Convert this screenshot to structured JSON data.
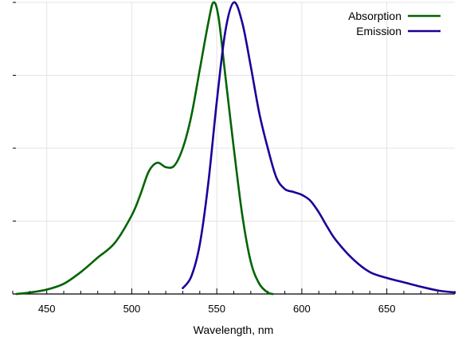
{
  "chart_data": {
    "type": "line",
    "xlabel": "Wavelength, nm",
    "ylabel": "",
    "xlim": [
      430,
      690
    ],
    "ylim": [
      0,
      1
    ],
    "x_ticks": [
      "450",
      "500",
      "550",
      "600",
      "650"
    ],
    "grid": true,
    "legend_position": "top-right",
    "series": [
      {
        "name": "Absorption",
        "color": "#006400",
        "points": [
          [
            432,
            0.0
          ],
          [
            440,
            0.005
          ],
          [
            450,
            0.015
          ],
          [
            460,
            0.035
          ],
          [
            470,
            0.075
          ],
          [
            480,
            0.125
          ],
          [
            490,
            0.175
          ],
          [
            500,
            0.27
          ],
          [
            505,
            0.34
          ],
          [
            510,
            0.42
          ],
          [
            515,
            0.45
          ],
          [
            520,
            0.435
          ],
          [
            525,
            0.44
          ],
          [
            530,
            0.5
          ],
          [
            535,
            0.61
          ],
          [
            540,
            0.77
          ],
          [
            545,
            0.93
          ],
          [
            548,
            1.0
          ],
          [
            551,
            0.95
          ],
          [
            555,
            0.75
          ],
          [
            560,
            0.5
          ],
          [
            565,
            0.27
          ],
          [
            570,
            0.11
          ],
          [
            575,
            0.035
          ],
          [
            580,
            0.005
          ],
          [
            583,
            0.0
          ]
        ]
      },
      {
        "name": "Emission",
        "color": "#1a0099",
        "points": [
          [
            530,
            0.02
          ],
          [
            535,
            0.06
          ],
          [
            540,
            0.17
          ],
          [
            545,
            0.38
          ],
          [
            550,
            0.66
          ],
          [
            555,
            0.9
          ],
          [
            560,
            1.0
          ],
          [
            565,
            0.93
          ],
          [
            570,
            0.78
          ],
          [
            575,
            0.62
          ],
          [
            580,
            0.5
          ],
          [
            585,
            0.4
          ],
          [
            590,
            0.36
          ],
          [
            595,
            0.35
          ],
          [
            600,
            0.34
          ],
          [
            605,
            0.32
          ],
          [
            610,
            0.28
          ],
          [
            615,
            0.23
          ],
          [
            620,
            0.185
          ],
          [
            630,
            0.12
          ],
          [
            640,
            0.075
          ],
          [
            650,
            0.055
          ],
          [
            660,
            0.04
          ],
          [
            670,
            0.025
          ],
          [
            680,
            0.012
          ],
          [
            690,
            0.005
          ]
        ]
      }
    ]
  }
}
